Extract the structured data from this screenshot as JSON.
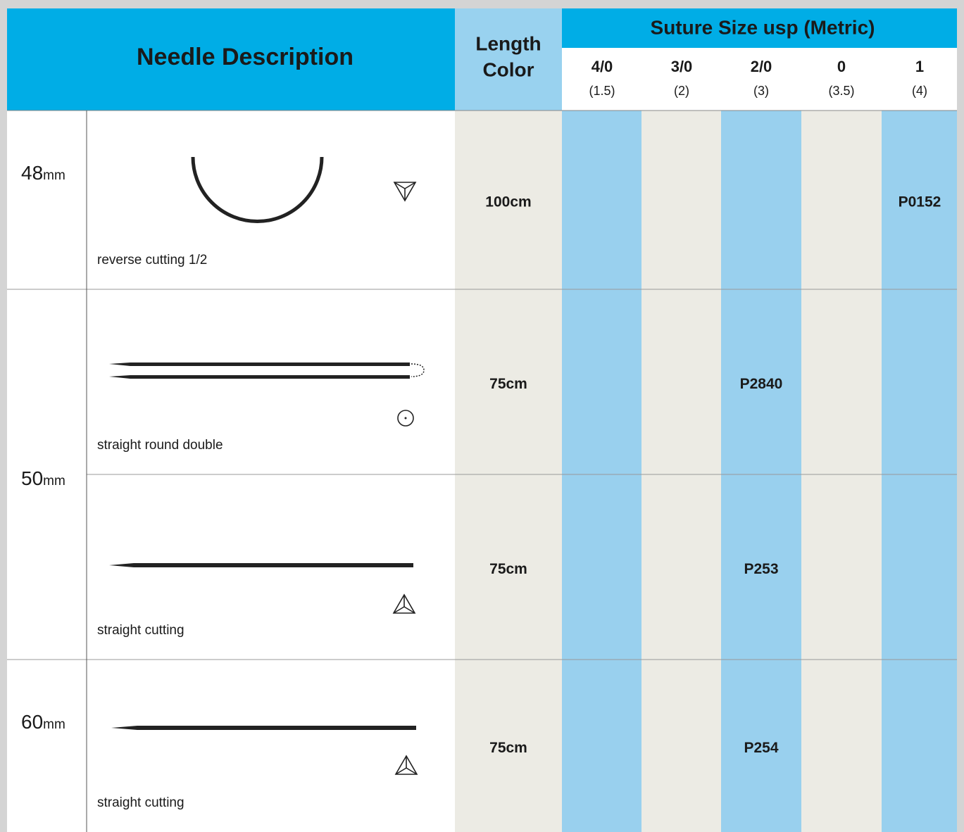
{
  "header": {
    "needle_description": "Needle Description",
    "length_color": [
      "Length",
      "Color"
    ],
    "suture_size_title": "Suture Size usp (Metric)",
    "sizes": [
      {
        "usp": "4/0",
        "metric": "(1.5)"
      },
      {
        "usp": "3/0",
        "metric": "(2)"
      },
      {
        "usp": "2/0",
        "metric": "(3)"
      },
      {
        "usp": "0",
        "metric": "(3.5)"
      },
      {
        "usp": "1",
        "metric": "(4)"
      }
    ]
  },
  "groups": [
    {
      "size": "48",
      "unit": "mm",
      "items": [
        {
          "description": "reverse cutting 1/2",
          "length": "100cm",
          "codes": [
            null,
            null,
            null,
            null,
            "P0152"
          ]
        }
      ]
    },
    {
      "size": "50",
      "unit": "mm",
      "items": [
        {
          "description": "straight round double",
          "length": "75cm",
          "codes": [
            null,
            null,
            "P2840",
            null,
            null
          ]
        },
        {
          "description": "straight cutting",
          "length": "75cm",
          "codes": [
            null,
            null,
            "P253",
            null,
            null
          ]
        }
      ]
    },
    {
      "size": "60",
      "unit": "mm",
      "items": [
        {
          "description": "straight cutting",
          "length": "75cm",
          "codes": [
            null,
            null,
            "P254",
            null,
            null
          ]
        }
      ]
    }
  ]
}
